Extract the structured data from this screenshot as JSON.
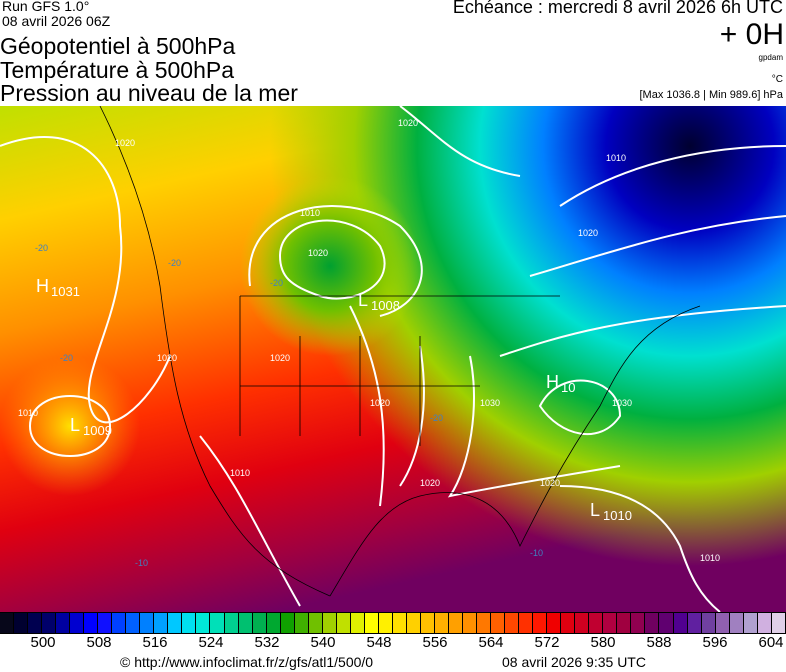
{
  "header": {
    "run": "Run GFS 1.0°",
    "run_date": "08 avril 2026 06Z",
    "echeance": "Echéance : mercredi 8 avril 2026 6h UTC",
    "offset": "+ 0H",
    "titles": [
      "Géopotentiel à 500hPa",
      "Température à 500hPa",
      "Pression au niveau de la mer"
    ],
    "unit_geo": "gpdam",
    "unit_temp": "°C",
    "minmax": "[Max 1036.8 | Min 989.6] hPa"
  },
  "map": {
    "centers": [
      {
        "type": "H",
        "value": "1031"
      },
      {
        "type": "L",
        "value": "1009"
      },
      {
        "type": "L",
        "value": "1008"
      },
      {
        "type": "L",
        "value": "1010"
      },
      {
        "type": "H",
        "value": "10"
      }
    ],
    "isobar_labels": [
      "1020",
      "1020",
      "1010",
      "1020",
      "1010",
      "1020",
      "1020",
      "1010",
      "1020",
      "1020",
      "1030",
      "1030",
      "1020",
      "1010",
      "1020",
      "1010"
    ],
    "temp_labels": [
      "-20",
      "-20",
      "-20",
      "-20",
      "-20",
      "-10",
      "-10"
    ]
  },
  "colorbar": {
    "colors": [
      "#07071a",
      "#000030",
      "#000050",
      "#00006a",
      "#0000a0",
      "#0000d0",
      "#0000ff",
      "#1010ff",
      "#0040ff",
      "#0060ff",
      "#0080ff",
      "#00a0ff",
      "#00c8ff",
      "#00e0f0",
      "#00e8d8",
      "#00e0b8",
      "#00d090",
      "#00c070",
      "#00b050",
      "#00a830",
      "#10a000",
      "#40b000",
      "#70c000",
      "#a0d000",
      "#c0e000",
      "#e0f000",
      "#ffff00",
      "#fff000",
      "#ffe000",
      "#ffd000",
      "#ffc000",
      "#ffb000",
      "#ffa000",
      "#ff9000",
      "#ff7800",
      "#ff6000",
      "#ff4800",
      "#ff3000",
      "#ff1800",
      "#f00000",
      "#e00010",
      "#d00020",
      "#c00030",
      "#b00040",
      "#a00040",
      "#900050",
      "#700060",
      "#600070",
      "#500090",
      "#6020a0",
      "#7040a0",
      "#9060b0",
      "#a080c0",
      "#b0a0d0",
      "#d0b0e0",
      "#e0d0e8"
    ],
    "ticks": [
      "500",
      "508",
      "516",
      "524",
      "532",
      "540",
      "548",
      "556",
      "564",
      "572",
      "580",
      "588",
      "596",
      "604"
    ]
  },
  "footer": {
    "url": "© http://www.infoclimat.fr/z/gfs/atl1/500/0",
    "date": "08 avril 2026  9:35 UTC"
  }
}
